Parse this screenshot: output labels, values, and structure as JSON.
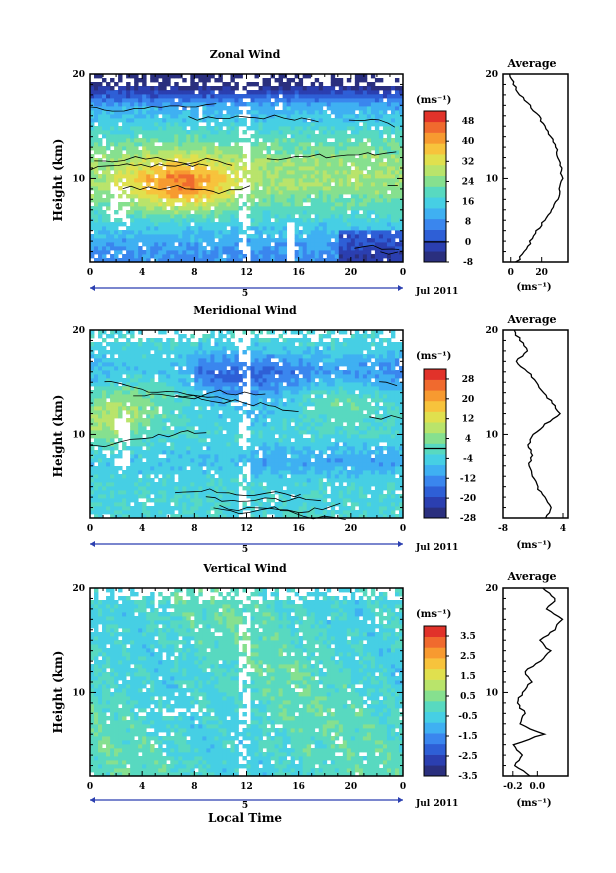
{
  "colors": {
    "scale": [
      "#2a2f7e",
      "#2b3fb0",
      "#2e5fd6",
      "#3a86ee",
      "#3fb0f2",
      "#46cfe4",
      "#58d9c0",
      "#86e08f",
      "#b9e46b",
      "#e0e04e",
      "#f7c33c",
      "#f79a30",
      "#f06a2e",
      "#e1322a"
    ],
    "contour": "#000000",
    "missing": "#ffffff",
    "axis": "#000000"
  },
  "figure": {
    "xlabel": "Local Time",
    "date_label": "Jul 2011",
    "day_label": "5",
    "profile_title": "Average"
  },
  "chart_data": [
    {
      "type": "heatmap",
      "title": "Zonal Wind",
      "ylabel": "Height (km)",
      "xlim": [
        0,
        24
      ],
      "ylim": [
        2,
        20
      ],
      "x_ticks": [
        "0",
        "4",
        "8",
        "12",
        "16",
        "20",
        "0"
      ],
      "y_ticks": [
        "10",
        "20"
      ],
      "colorbar": {
        "unit": "(ms⁻¹)",
        "min": -8,
        "max": 52,
        "labels": [
          "-8",
          "0",
          "8",
          "16",
          "24",
          "32",
          "40",
          "48"
        ],
        "contour_level": 0
      },
      "profile": {
        "title": "Average",
        "xlim": [
          -5,
          37
        ],
        "x_ticks": [
          "0",
          "20"
        ],
        "unit": "(ms⁻¹)",
        "height_km": [
          2,
          3,
          4,
          5,
          6,
          7,
          8,
          9,
          10,
          11,
          12,
          13,
          14,
          15,
          16,
          17,
          18,
          19,
          20
        ],
        "value": [
          4,
          9,
          13,
          17,
          22,
          27,
          30,
          32,
          33,
          33,
          31,
          29,
          26,
          22,
          18,
          12,
          6,
          2,
          -1
        ]
      }
    },
    {
      "type": "heatmap",
      "title": "Meridional Wind",
      "ylabel": "Height (km)",
      "xlim": [
        0,
        24
      ],
      "ylim": [
        2,
        20
      ],
      "x_ticks": [
        "0",
        "4",
        "8",
        "12",
        "16",
        "20",
        "0"
      ],
      "y_ticks": [
        "10",
        "20"
      ],
      "colorbar": {
        "unit": "(ms⁻¹)",
        "min": -28,
        "max": 32,
        "labels": [
          "-28",
          "-20",
          "-12",
          "-4",
          "4",
          "12",
          "20",
          "28"
        ],
        "contour_level": 0
      },
      "profile": {
        "title": "Average",
        "xlim": [
          -8,
          5
        ],
        "x_ticks": [
          "-8",
          "4"
        ],
        "unit": "(ms⁻¹)",
        "height_km": [
          2,
          3,
          4,
          5,
          6,
          7,
          8,
          9,
          10,
          11,
          12,
          13,
          14,
          15,
          16,
          17,
          18,
          19,
          20
        ],
        "value": [
          0.8,
          1.5,
          0.3,
          -1.2,
          -2,
          -2.8,
          -2.2,
          -3,
          -1.8,
          0.5,
          3.5,
          2,
          0,
          -1.5,
          -3,
          -5.5,
          -3,
          -4.5,
          -6
        ]
      }
    },
    {
      "type": "heatmap",
      "title": "Vertical Wind",
      "ylabel": "Height (km)",
      "xlim": [
        0,
        24
      ],
      "ylim": [
        2,
        20
      ],
      "x_ticks": [
        "0",
        "4",
        "8",
        "12",
        "16",
        "20",
        "0"
      ],
      "y_ticks": [
        "10",
        "20"
      ],
      "colorbar": {
        "unit": "(ms⁻¹)",
        "min": -3.5,
        "max": 4,
        "labels": [
          "-3.5",
          "-2.5",
          "-1.5",
          "-0.5",
          "0.5",
          "1.5",
          "2.5",
          "3.5"
        ],
        "contour_level": null
      },
      "profile": {
        "title": "Average",
        "xlim": [
          -0.28,
          0.25
        ],
        "x_ticks": [
          "-0.2",
          "0.0"
        ],
        "unit": "(ms⁻¹)",
        "height_km": [
          2,
          3,
          4,
          5,
          6,
          7,
          8,
          9,
          10,
          11,
          12,
          13,
          14,
          15,
          16,
          17,
          18,
          19,
          20
        ],
        "value": [
          -0.05,
          -0.18,
          -0.12,
          -0.2,
          0.05,
          -0.15,
          -0.1,
          -0.17,
          -0.12,
          -0.05,
          -0.1,
          0.02,
          0.1,
          0.03,
          0.14,
          0.2,
          0.08,
          0.15,
          0.05
        ]
      }
    }
  ]
}
